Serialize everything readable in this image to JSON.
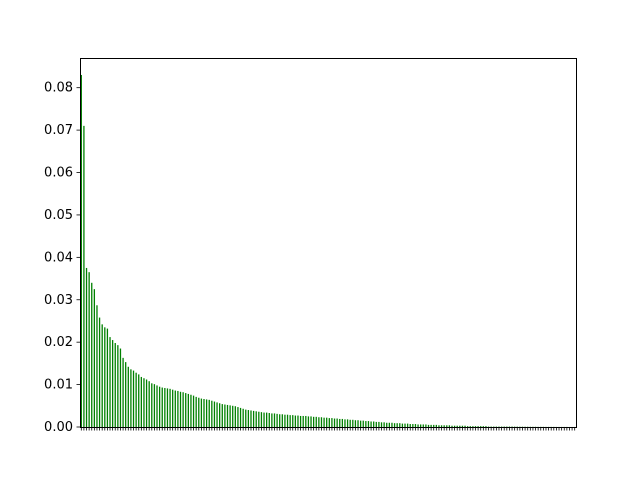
{
  "chart_data": {
    "type": "bar",
    "title": "",
    "xlabel": "",
    "ylabel": "",
    "ylim": [
      0,
      0.087
    ],
    "yticks": [
      "0.00",
      "0.01",
      "0.02",
      "0.03",
      "0.04",
      "0.05",
      "0.06",
      "0.07",
      "0.08"
    ],
    "bar_color": "#008000",
    "grid": false,
    "legend": "none",
    "values": [
      0.083,
      0.071,
      0.0375,
      0.0365,
      0.034,
      0.0325,
      0.0287,
      0.0258,
      0.0242,
      0.0235,
      0.0232,
      0.0212,
      0.0205,
      0.0198,
      0.0193,
      0.0185,
      0.0163,
      0.0153,
      0.0142,
      0.0136,
      0.0133,
      0.0128,
      0.0124,
      0.0118,
      0.0115,
      0.0112,
      0.0108,
      0.0103,
      0.0101,
      0.0098,
      0.0095,
      0.0093,
      0.0092,
      0.0091,
      0.009,
      0.0088,
      0.0086,
      0.0085,
      0.0083,
      0.0082,
      0.008,
      0.0078,
      0.0076,
      0.0074,
      0.0071,
      0.0069,
      0.0067,
      0.0066,
      0.0065,
      0.0064,
      0.0062,
      0.006,
      0.0058,
      0.0056,
      0.0054,
      0.0053,
      0.0052,
      0.0051,
      0.005,
      0.0049,
      0.0047,
      0.0045,
      0.0043,
      0.0041,
      0.004,
      0.0039,
      0.0038,
      0.0037,
      0.0036,
      0.0035,
      0.0034,
      0.0034,
      0.0033,
      0.0032,
      0.0032,
      0.0031,
      0.003,
      0.003,
      0.0029,
      0.0029,
      0.0028,
      0.0028,
      0.0027,
      0.0027,
      0.0026,
      0.0026,
      0.0026,
      0.0025,
      0.0025,
      0.0024,
      0.0024,
      0.0023,
      0.0023,
      0.0022,
      0.0022,
      0.0021,
      0.0021,
      0.002,
      0.002,
      0.0019,
      0.0019,
      0.0018,
      0.0018,
      0.0017,
      0.0017,
      0.0016,
      0.0016,
      0.0015,
      0.0015,
      0.0014,
      0.0014,
      0.0013,
      0.0013,
      0.0012,
      0.0012,
      0.0011,
      0.0011,
      0.001,
      0.001,
      0.001,
      0.0009,
      0.0009,
      0.0009,
      0.0008,
      0.0008,
      0.0008,
      0.0007,
      0.0007,
      0.0007,
      0.0006,
      0.0006,
      0.0006,
      0.0006,
      0.0005,
      0.0005,
      0.0005,
      0.0005,
      0.0004,
      0.0004,
      0.0004,
      0.0004,
      0.0004,
      0.0003,
      0.0003,
      0.0003,
      0.0003,
      0.0003,
      0.0003,
      0.0002,
      0.0002,
      0.0002,
      0.0002,
      0.0002,
      0.0002,
      0.0002,
      0.0002,
      0.0001,
      0.0001,
      0.0001,
      0.0001,
      0.0001,
      0.0001,
      0.0001,
      0.0001,
      0.0001,
      0.0001,
      8e-05,
      8e-05,
      7e-05,
      7e-05,
      6e-05,
      6e-05,
      5e-05,
      5e-05,
      5e-05,
      4e-05,
      4e-05,
      4e-05,
      3e-05,
      3e-05,
      3e-05,
      3e-05,
      2e-05,
      2e-05,
      2e-05,
      2e-05,
      2e-05,
      1e-05,
      1e-05,
      1e-05
    ]
  }
}
